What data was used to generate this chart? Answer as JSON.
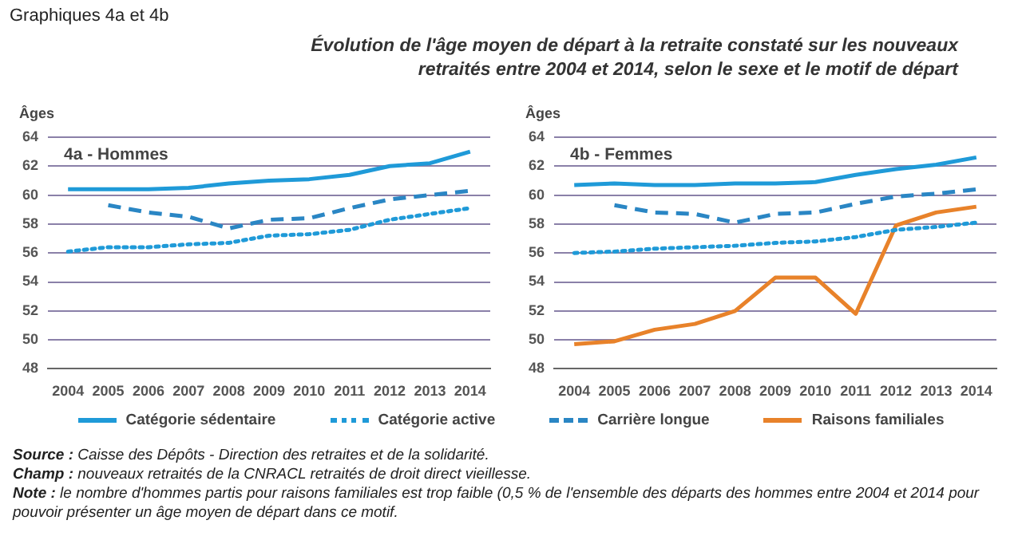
{
  "chart_data": [
    {
      "type": "line",
      "title": "Évolution de l'âge moyen de départ à la retraite constaté sur les nouveaux retraités entre 2004 et 2014, selon le sexe et le motif de départ",
      "subtitle": "4a - Hommes",
      "ylabel": "Âges",
      "annotations": [
        "Graphiques 4a et 4b"
      ],
      "categories": [
        "2004",
        "2005",
        "2006",
        "2007",
        "2008",
        "2009",
        "2010",
        "2011",
        "2012",
        "2013",
        "2014"
      ],
      "series": [
        {
          "color": "#1f9ad8",
          "line_style": "solid",
          "values": [
            60.4,
            60.4,
            60.4,
            60.5,
            60.8,
            61.0,
            61.1,
            61.4,
            62.0,
            62.2,
            63.0
          ]
        },
        {
          "color": "#1f9ad8",
          "line_style": "dotted",
          "values": [
            56.1,
            56.4,
            56.4,
            56.6,
            56.7,
            57.2,
            57.3,
            57.6,
            58.3,
            58.7,
            59.1
          ]
        },
        {
          "color": "#2a86c4",
          "line_style": "dashed",
          "values": [
            null,
            59.3,
            58.8,
            58.5,
            57.7,
            58.3,
            58.4,
            59.1,
            59.7,
            60.0,
            60.3
          ]
        }
      ],
      "ylim": [
        48,
        64
      ],
      "yticks": [
        48,
        50,
        52,
        54,
        56,
        58,
        60,
        62,
        64
      ],
      "grid": "y",
      "marker": "none",
      "legend": false
    },
    {
      "type": "line",
      "subtitle": "4b - Femmes",
      "ylabel": "Âges",
      "annotations": [
        "Source : Caisse des Dépôts - Direction des retraites et de la solidarité.",
        "Champ : nouveaux retraités de la CNRACL retraités de droit direct vieillesse.",
        "Note : le nombre d'hommes partis pour raisons familiales est trop faible (0,5 % de l'ensemble des départs des hommes entre 2004 et 2014 pour pouvoir présenter un âge moyen de départ dans ce motif."
      ],
      "categories": [
        "2004",
        "2005",
        "2006",
        "2007",
        "2008",
        "2009",
        "2010",
        "2011",
        "2012",
        "2013",
        "2014"
      ],
      "series": [
        {
          "name": "Catégorie sédentaire",
          "color": "#1f9ad8",
          "line_style": "solid",
          "values": [
            60.7,
            60.8,
            60.7,
            60.7,
            60.8,
            60.8,
            60.9,
            61.4,
            61.8,
            62.1,
            62.6
          ]
        },
        {
          "name": "Catégorie active",
          "color": "#1f9ad8",
          "line_style": "dotted",
          "values": [
            56.0,
            56.1,
            56.3,
            56.4,
            56.5,
            56.7,
            56.8,
            57.1,
            57.6,
            57.8,
            58.1
          ]
        },
        {
          "name": "Carrière longue",
          "color": "#2a86c4",
          "line_style": "dashed",
          "values": [
            null,
            59.3,
            58.8,
            58.7,
            58.1,
            58.7,
            58.8,
            59.4,
            59.9,
            60.1,
            60.4
          ]
        },
        {
          "name": "Raisons familiales",
          "color": "#e8822a",
          "line_style": "solid",
          "values": [
            49.7,
            49.9,
            50.7,
            51.1,
            52.0,
            54.3,
            54.3,
            51.8,
            57.9,
            58.8,
            59.2
          ]
        }
      ],
      "ylim": [
        48,
        64
      ],
      "yticks": [
        48,
        50,
        52,
        54,
        56,
        58,
        60,
        62,
        64
      ],
      "grid": "y",
      "marker": "none",
      "legend": "bottom"
    }
  ]
}
